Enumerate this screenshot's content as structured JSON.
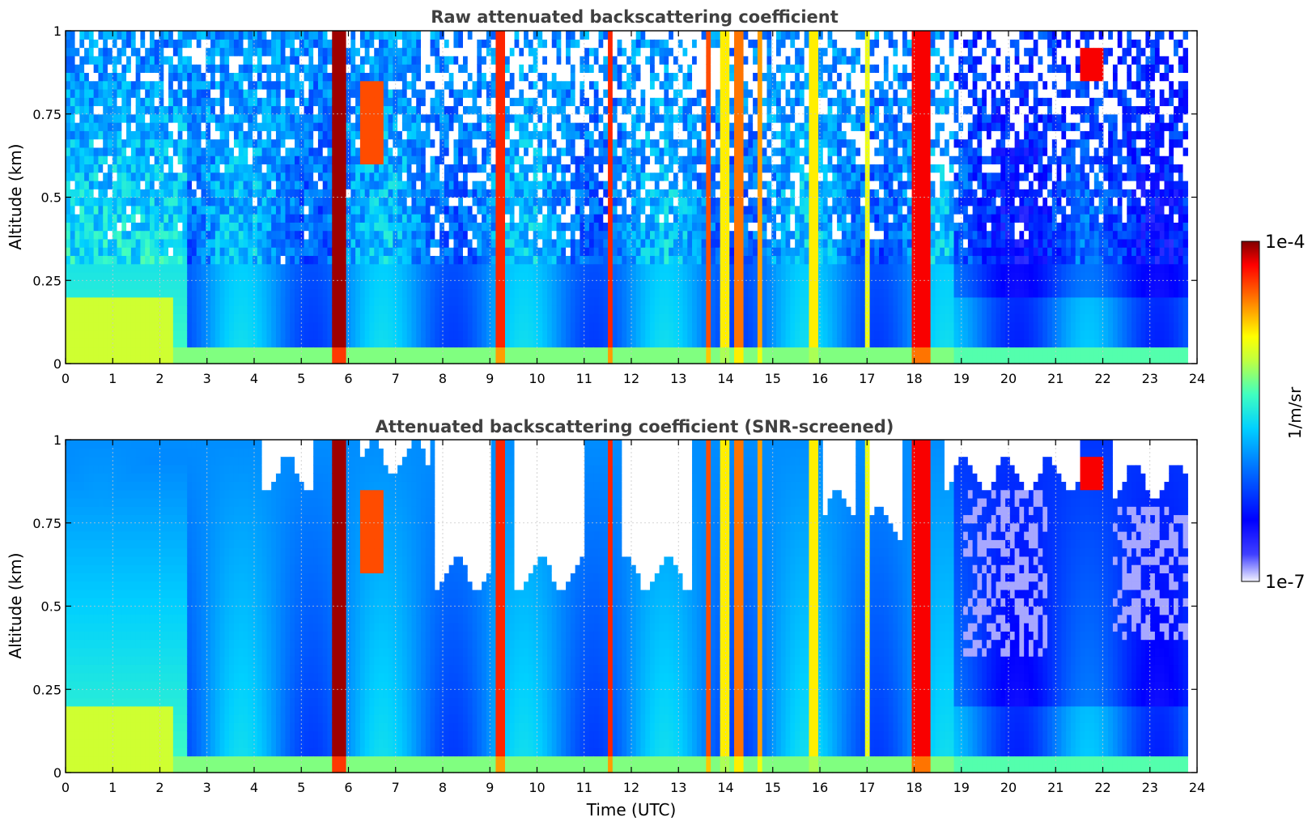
{
  "figure": {
    "colorbar": {
      "max_label": "1e-4",
      "min_label": "1e-7",
      "unit_label": "1/m/sr",
      "colormap": "jet",
      "scale": "log",
      "range": [
        1e-07,
        0.0001
      ]
    }
  },
  "chart_data": [
    {
      "type": "heatmap",
      "title": "Raw attenuated backscattering coefficient",
      "xlabel": "",
      "ylabel": "Altitude (km)",
      "xlim": [
        0,
        24
      ],
      "ylim": [
        0,
        1
      ],
      "x_ticks": [
        "0",
        "1",
        "2",
        "3",
        "4",
        "5",
        "6",
        "7",
        "8",
        "9",
        "10",
        "11",
        "12",
        "13",
        "14",
        "15",
        "16",
        "17",
        "18",
        "19",
        "20",
        "21",
        "22",
        "23",
        "24"
      ],
      "y_ticks": [
        "0",
        "0.25",
        "0.5",
        "0.75",
        "1"
      ],
      "grid": true,
      "data_end_time": 23.8,
      "background_log10": -5.9,
      "near_surface_log10": -5.2,
      "morning_boundary_layer": {
        "start": 0,
        "end": 2.3,
        "top_km": 0.2,
        "log10": -5.0
      },
      "noise_free_below_km": 0.3,
      "cloud_columns": [
        {
          "t0": 5.65,
          "t1": 5.95,
          "log10": -4.05
        },
        {
          "t0": 9.15,
          "t1": 9.35,
          "log10": -4.3
        },
        {
          "t0": 11.5,
          "t1": 11.65,
          "log10": -4.3
        },
        {
          "t0": 13.6,
          "t1": 13.72,
          "log10": -4.4
        },
        {
          "t0": 13.85,
          "t1": 14.05,
          "log10": -4.8
        },
        {
          "t0": 14.2,
          "t1": 14.35,
          "log10": -4.5
        },
        {
          "t0": 14.7,
          "t1": 14.82,
          "log10": -4.6
        },
        {
          "t0": 15.75,
          "t1": 15.95,
          "log10": -4.8
        },
        {
          "t0": 16.92,
          "t1": 17.02,
          "log10": -4.9
        },
        {
          "t0": 17.95,
          "t1": 18.3,
          "log10": -4.2
        }
      ],
      "upper_features": [
        {
          "t": 6.5,
          "alt_low": 0.6,
          "alt_high": 0.85,
          "log10": -4.4
        },
        {
          "t": 21.8,
          "alt_low": 0.85,
          "alt_high": 0.95,
          "log10": -4.2
        }
      ]
    },
    {
      "type": "heatmap",
      "title": "Attenuated backscattering coefficient (SNR-screened)",
      "xlabel": "Time (UTC)",
      "ylabel": "Altitude (km)",
      "xlim": [
        0,
        24
      ],
      "ylim": [
        0,
        1
      ],
      "x_ticks": [
        "0",
        "1",
        "2",
        "3",
        "4",
        "5",
        "6",
        "7",
        "8",
        "9",
        "10",
        "11",
        "12",
        "13",
        "14",
        "15",
        "16",
        "17",
        "18",
        "19",
        "20",
        "21",
        "22",
        "23",
        "24"
      ],
      "y_ticks": [
        "0",
        "0.25",
        "0.5",
        "0.75",
        "1"
      ],
      "grid": true,
      "data_end_time": 23.8,
      "screened_regions": [
        {
          "t0": 4.2,
          "t1": 5.3,
          "alt_low": 0.9
        },
        {
          "t0": 6.2,
          "t1": 7.7,
          "alt_low": 0.95
        },
        {
          "t0": 7.8,
          "t1": 9.0,
          "alt_low": 0.6
        },
        {
          "t0": 9.5,
          "t1": 11.0,
          "alt_low": 0.6
        },
        {
          "t0": 11.8,
          "t1": 13.3,
          "alt_low": 0.6
        },
        {
          "t0": 16.1,
          "t1": 16.8,
          "alt_low": 0.8
        },
        {
          "t0": 17.1,
          "t1": 17.8,
          "alt_low": 0.75
        },
        {
          "t0": 18.6,
          "t1": 21.5,
          "alt_low": 0.9
        },
        {
          "t0": 22.2,
          "t1": 23.8,
          "alt_low": 0.88
        }
      ],
      "faded_regions": [
        {
          "t0": 19.0,
          "t1": 20.8,
          "alt_low": 0.35,
          "alt_high": 0.85
        },
        {
          "t0": 22.2,
          "t1": 23.8,
          "alt_low": 0.4,
          "alt_high": 0.8
        }
      ]
    }
  ]
}
